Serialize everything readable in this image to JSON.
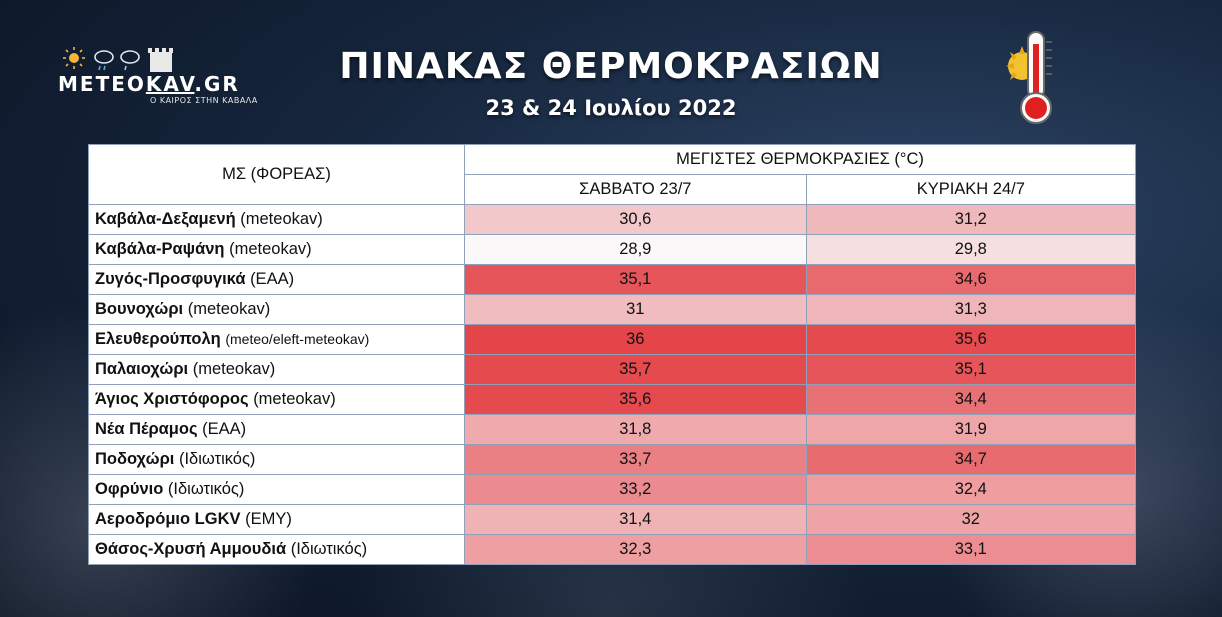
{
  "header": {
    "logo_text_a": "METEO",
    "logo_text_b": "KAV",
    "logo_text_c": ".GR",
    "logo_tagline": "Ο ΚΑΙΡΟΣ ΣΤΗΝ ΚΑΒΑΛΑ",
    "title": "ΠΙΝΑΚΑΣ ΘΕΡΜΟΚΡΑΣΙΩΝ",
    "subtitle": "23 & 24 Ιουλίου 2022"
  },
  "table": {
    "station_header": "ΜΣ (ΦΟΡΕΑΣ)",
    "group_header": "ΜΕΓΙΣΤΕΣ ΘΕΡΜΟΚΡΑΣΙΕΣ (°C)",
    "day1_header": "ΣΑΒΒΑΤΟ 23/7",
    "day2_header": "ΚΥΡΙΑΚΗ 24/7",
    "rows": [
      {
        "name": "Καβάλα-Δεξαμενή",
        "agency": "(meteokav)",
        "sat": "30,6",
        "sun": "31,2",
        "sat_color": "#f2c8cb",
        "sun_color": "#efb8bb"
      },
      {
        "name": "Καβάλα-Ραψάνη",
        "agency": "(meteokav)",
        "sat": "28,9",
        "sun": "29,8",
        "sat_color": "#fbf8f9",
        "sun_color": "#f6dfe1"
      },
      {
        "name": "Ζυγός-Προσφυγικά",
        "agency": "(ΕΑΑ)",
        "sat": "35,1",
        "sun": "34,6",
        "sat_color": "#e6555a",
        "sun_color": "#e86a6e"
      },
      {
        "name": "Βουνοχώρι",
        "agency": "(meteokav)",
        "sat": "31",
        "sun": "31,3",
        "sat_color": "#f0bcbf",
        "sun_color": "#efb5b8"
      },
      {
        "name": "Ελευθερούπολη",
        "agency": "(meteo/eleft-meteokav)",
        "sat": "36",
        "sun": "35,6",
        "sat_color": "#e34549",
        "sun_color": "#e44a4e"
      },
      {
        "name": "Παλαιοχώρι",
        "agency": "(meteokav)",
        "sat": "35,7",
        "sun": "35,1",
        "sat_color": "#e44a4e",
        "sun_color": "#e6555a"
      },
      {
        "name": "Άγιος Χριστόφορος",
        "agency": "(meteokav)",
        "sat": "35,6",
        "sun": "34,4",
        "sat_color": "#e44a4e",
        "sun_color": "#e87175"
      },
      {
        "name": "Νέα Πέραμος",
        "agency": "(ΕΑΑ)",
        "sat": "31,8",
        "sun": "31,9",
        "sat_color": "#eeaaad",
        "sun_color": "#eea6a9"
      },
      {
        "name": "Ποδοχώρι",
        "agency": "(Ιδιωτικός)",
        "sat": "33,7",
        "sun": "34,7",
        "sat_color": "#ea8084",
        "sun_color": "#e86b6f"
      },
      {
        "name": "Οφρύνιο",
        "agency": "(Ιδιωτικός)",
        "sat": "33,2",
        "sun": "32,4",
        "sat_color": "#ec8b8f",
        "sun_color": "#ef9d9f"
      },
      {
        "name": "Αεροδρόμιο LGKV",
        "agency": "(ΕΜΥ)",
        "sat": "31,4",
        "sun": "32",
        "sat_color": "#efb3b6",
        "sun_color": "#eea4a7"
      },
      {
        "name": "Θάσος-Χρυσή Αμμουδιά",
        "agency": "(Ιδιωτικός)",
        "sat": "32,3",
        "sun": "33,1",
        "sat_color": "#ee9fa2",
        "sun_color": "#ec8d91"
      }
    ]
  }
}
